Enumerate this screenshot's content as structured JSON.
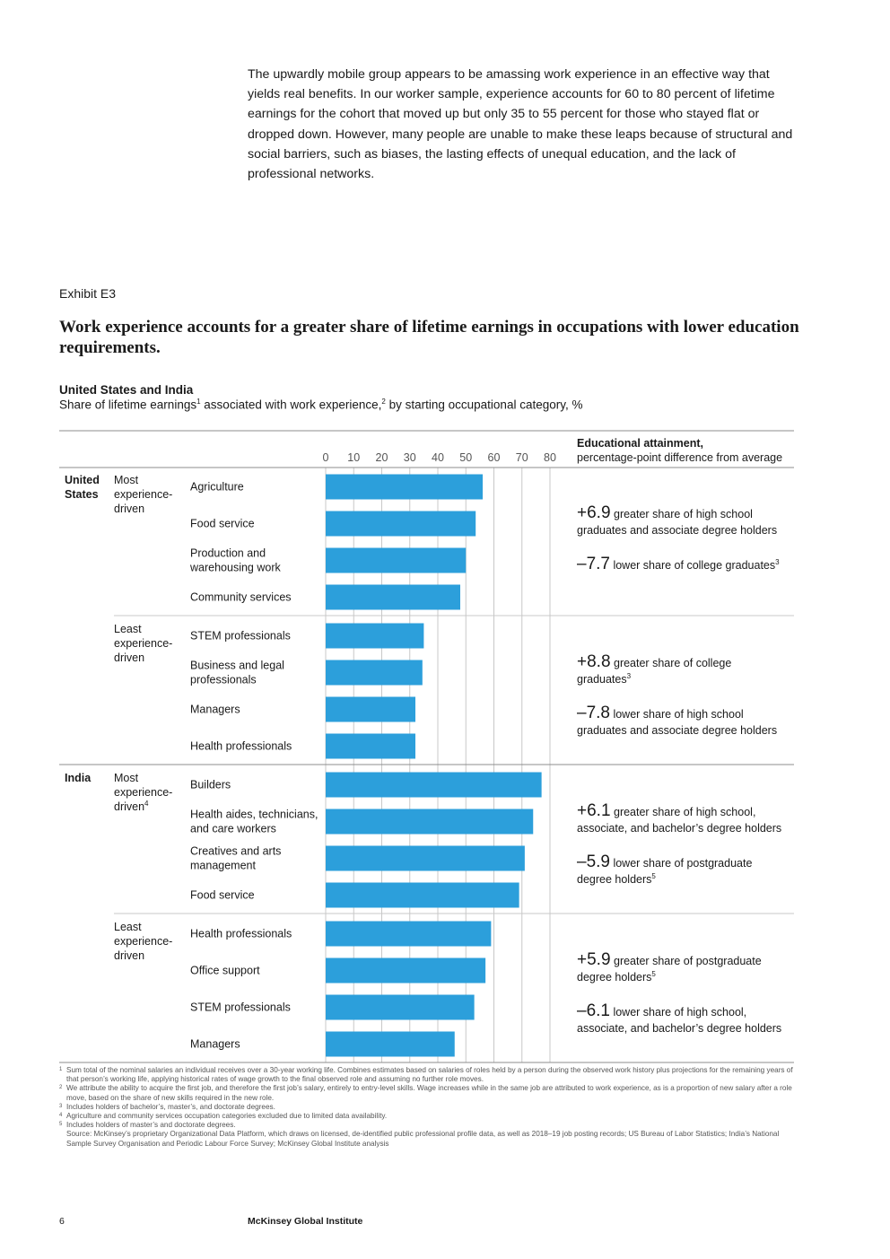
{
  "intro_text": "The upwardly mobile group appears to be amassing work experience in an effective way that yields real benefits. In our worker sample, experience accounts for 60 to 80 percent of lifetime earnings for the cohort that moved up but only 35 to 55 percent for those who stayed flat or dropped down. However, many people are unable to make these leaps because of structural and social barriers, such as biases, the lasting effects of unequal education, and the lack of professional networks.",
  "exhibit": {
    "label": "Exhibit E3",
    "title": "Work experience accounts for a greater share of lifetime earnings in occupations with lower education requirements."
  },
  "chart_header": {
    "title": "United States and India",
    "subtitle_part1": "Share of lifetime earnings",
    "subtitle_sup1": "1",
    "subtitle_part2": " associated with work experience,",
    "subtitle_sup2": "2",
    "subtitle_part3": " by starting occupational category, %"
  },
  "colors": {
    "bar": "#2c9fdb",
    "grid": "#c8c8c8",
    "rule": "#8c8c8c"
  },
  "chart_data": {
    "type": "bar",
    "orientation": "horizontal",
    "xlim": [
      0,
      80
    ],
    "ticks": [
      0,
      10,
      20,
      30,
      40,
      50,
      60,
      70,
      80
    ],
    "annotation_header": {
      "title": "Educational attainment,",
      "subtitle": "percentage-point difference from average"
    },
    "countries": [
      {
        "name": [
          "United",
          "States"
        ],
        "groups": [
          {
            "label": [
              "Most",
              "experience-",
              "driven"
            ],
            "label_sup": "",
            "categories": [
              {
                "label": [
                  "Agriculture"
                ],
                "value": 56
              },
              {
                "label": [
                  "Food service"
                ],
                "value": 53.5
              },
              {
                "label": [
                  "Production and",
                  "warehousing work"
                ],
                "value": 50
              },
              {
                "label": [
                  "Community services"
                ],
                "value": 48
              }
            ],
            "annotations": [
              {
                "value": "+6.9",
                "lines": [
                  "greater share of high school",
                  "graduates and associate degree holders"
                ],
                "sup": ""
              },
              {
                "value": "–7.7",
                "lines": [
                  "lower share of college graduates"
                ],
                "sup": "3"
              }
            ]
          },
          {
            "label": [
              "Least",
              "experience-",
              "driven"
            ],
            "label_sup": "",
            "categories": [
              {
                "label": [
                  "STEM professionals"
                ],
                "value": 35
              },
              {
                "label": [
                  "Business and legal",
                  "professionals"
                ],
                "value": 34.5
              },
              {
                "label": [
                  "Managers"
                ],
                "value": 32
              },
              {
                "label": [
                  "Health professionals"
                ],
                "value": 32
              }
            ],
            "annotations": [
              {
                "value": "+8.8",
                "lines": [
                  "greater share of college",
                  "graduates"
                ],
                "sup": "3"
              },
              {
                "value": "–7.8",
                "lines": [
                  "lower share of high school",
                  "graduates and associate degree holders"
                ],
                "sup": ""
              }
            ]
          }
        ]
      },
      {
        "name": [
          "India"
        ],
        "groups": [
          {
            "label": [
              "Most",
              "experience-",
              "driven"
            ],
            "label_sup": "4",
            "categories": [
              {
                "label": [
                  "Builders"
                ],
                "value": 77
              },
              {
                "label": [
                  "Health aides, technicians,",
                  "and care workers"
                ],
                "value": 74
              },
              {
                "label": [
                  "Creatives and arts",
                  "management"
                ],
                "value": 71
              },
              {
                "label": [
                  "Food service"
                ],
                "value": 69
              }
            ],
            "annotations": [
              {
                "value": "+6.1",
                "lines": [
                  "greater share of high school,",
                  "associate, and bachelor’s degree holders"
                ],
                "sup": ""
              },
              {
                "value": "–5.9",
                "lines": [
                  "lower share of postgraduate",
                  "degree holders"
                ],
                "sup": "5"
              }
            ]
          },
          {
            "label": [
              "Least",
              "experience-",
              "driven"
            ],
            "label_sup": "",
            "categories": [
              {
                "label": [
                  "Health professionals"
                ],
                "value": 59
              },
              {
                "label": [
                  "Office support"
                ],
                "value": 57
              },
              {
                "label": [
                  "STEM professionals"
                ],
                "value": 53
              },
              {
                "label": [
                  "Managers"
                ],
                "value": 46
              }
            ],
            "annotations": [
              {
                "value": "+5.9",
                "lines": [
                  "greater share of postgraduate",
                  "degree holders"
                ],
                "sup": "5"
              },
              {
                "value": "–6.1",
                "lines": [
                  "lower share of high school,",
                  "associate, and bachelor’s degree holders"
                ],
                "sup": ""
              }
            ]
          }
        ]
      }
    ]
  },
  "footnotes": [
    {
      "num": "1",
      "text": "Sum total of the nominal salaries an individual receives over a 30-year working life. Combines estimates based on salaries of roles held by a person during the observed work history plus projections for the remaining years of that person’s working life, applying historical rates of wage growth to the final observed role and assuming no further role moves."
    },
    {
      "num": "2",
      "text": "We attribute the ability to acquire the first job, and therefore the first job’s salary, entirely to entry-level skills. Wage increases while in the same job are attributed to work experience, as is a proportion of new salary after a role move, based on the share of new skills required in the new role."
    },
    {
      "num": "3",
      "text": "Includes holders of bachelor’s, master’s, and doctorate degrees."
    },
    {
      "num": "4",
      "text": "Agriculture and community services occupation categories excluded due to limited data availability."
    },
    {
      "num": "5",
      "text": "Includes holders of master’s and doctorate degrees."
    },
    {
      "num": "",
      "text": "Source: McKinsey’s proprietary Organizational Data Platform, which draws on licensed, de-identified public professional profile data, as well as 2018–19 job posting records; US Bureau of Labor Statistics; India’s National Sample Survey Organisation and Periodic Labour Force Survey; McKinsey Global Institute analysis"
    }
  ],
  "footer": {
    "page_number": "6",
    "brand": "McKinsey Global Institute"
  }
}
